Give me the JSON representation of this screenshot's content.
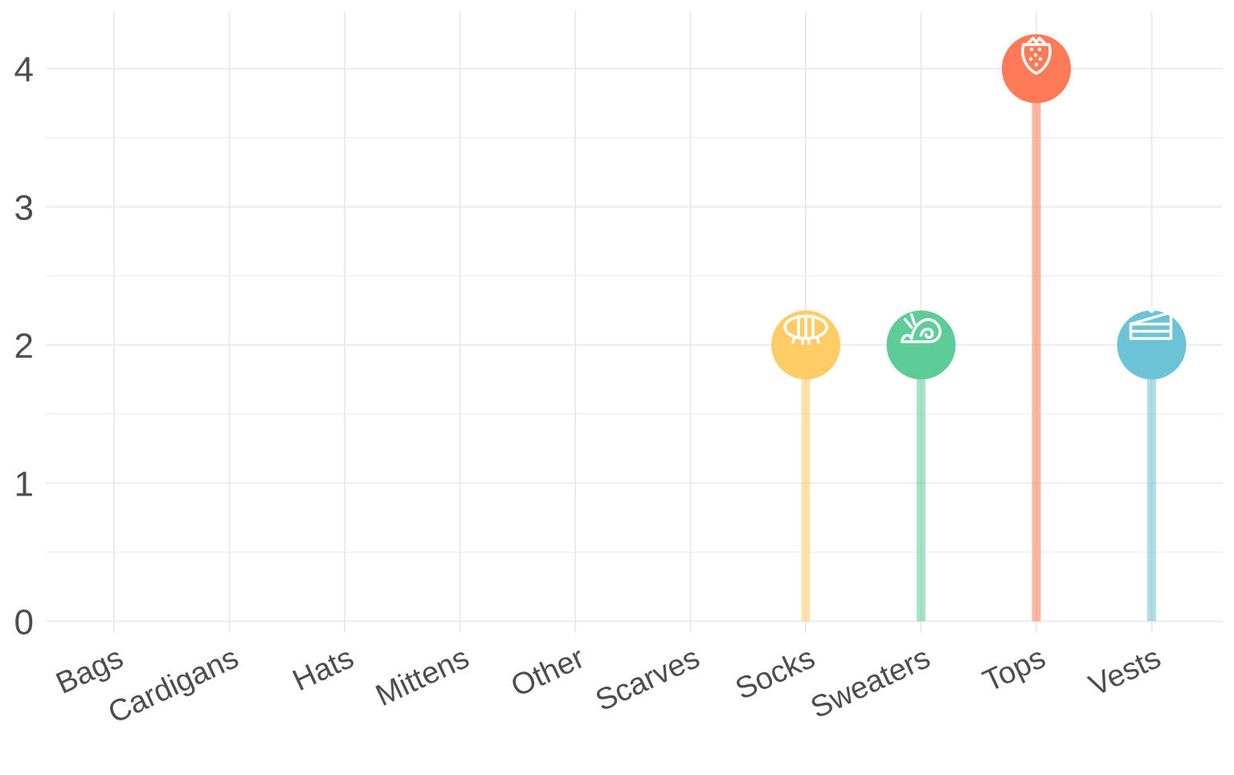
{
  "chart_data": {
    "type": "lollipop",
    "title": "",
    "xlabel": "",
    "ylabel": "",
    "categories": [
      "Bags",
      "Cardigans",
      "Hats",
      "Mittens",
      "Other",
      "Scarves",
      "Socks",
      "Sweaters",
      "Tops",
      "Vests"
    ],
    "values": [
      0,
      0,
      0,
      0,
      0,
      0,
      2,
      2,
      4,
      2
    ],
    "ylim": [
      -0.22,
      4.42
    ],
    "yticks": [
      0,
      1,
      2,
      3,
      4
    ],
    "ytick_labels": [
      "0",
      "1",
      "2",
      "3",
      "4"
    ],
    "grid": true,
    "legend": "none",
    "colors": {
      "Socks": "#ffcc66",
      "Sweaters": "#5ecc99",
      "Tops": "#ff7a55",
      "Vests": "#6cc3d5"
    },
    "icons": {
      "Socks": "pineapple-icon",
      "Sweaters": "snail-icon",
      "Tops": "strawberry-icon",
      "Vests": "cake-slice-icon"
    },
    "grid_color": "#ebebeb",
    "text_color": "#4d4d4d"
  }
}
